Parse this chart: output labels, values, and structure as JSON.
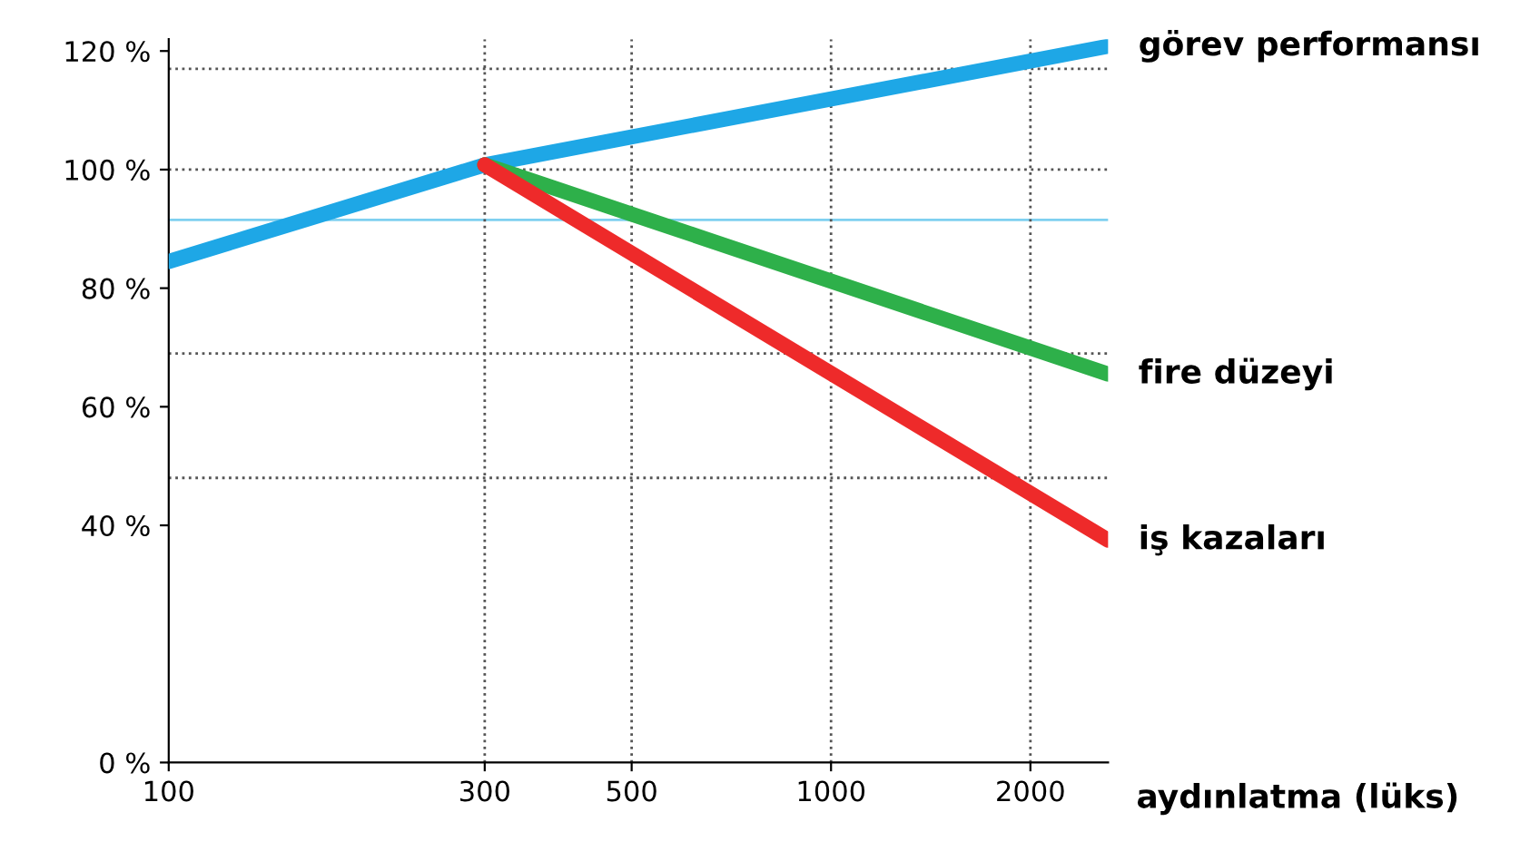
{
  "chart_data": {
    "type": "line",
    "xlabel": "aydınlatma (lüks)",
    "log": "x",
    "xlim": [
      100,
      2620
    ],
    "xticks": [
      100,
      300,
      500,
      1000,
      2000
    ],
    "ylim": [
      0,
      122
    ],
    "yticks": [
      {
        "value": 0,
        "label": "0 %"
      },
      {
        "value": 40,
        "label": "40 %"
      },
      {
        "value": 60,
        "label": "60 %"
      },
      {
        "value": 80,
        "label": "80 %"
      },
      {
        "value": 100,
        "label": "100 %"
      },
      {
        "value": 120,
        "label": "120 %"
      }
    ],
    "grid": false,
    "legend": false,
    "marker": "none",
    "line_style": "solid",
    "series": [
      {
        "name": "görev performansı",
        "color": "#1ea7e6",
        "x": [
          100,
          300,
          2620
        ],
        "values": [
          84.5,
          100.8,
          120.8
        ]
      },
      {
        "name": "fire düzeyi",
        "color": "#2eb04a",
        "x": [
          300,
          2620
        ],
        "values": [
          100.8,
          65.5
        ]
      },
      {
        "name": "iş kazaları",
        "color": "#ee2a2a",
        "x": [
          300,
          2620
        ],
        "values": [
          100.8,
          37.5
        ]
      }
    ],
    "ref_lines": [
      {
        "axis": "y",
        "value": 117,
        "color": "#555555",
        "line_style": "dotted"
      },
      {
        "axis": "y",
        "value": 100,
        "color": "#555555",
        "line_style": "dotted"
      },
      {
        "axis": "y",
        "value": 91.5,
        "color": "#7fd0f0",
        "line_style": "solid"
      },
      {
        "axis": "y",
        "value": 69,
        "color": "#555555",
        "line_style": "dotted"
      },
      {
        "axis": "y",
        "value": 48,
        "color": "#555555",
        "line_style": "dotted"
      },
      {
        "axis": "x",
        "value": 300,
        "color": "#555555",
        "line_style": "dotted"
      },
      {
        "axis": "x",
        "value": 500,
        "color": "#555555",
        "line_style": "dotted"
      },
      {
        "axis": "x",
        "value": 1000,
        "color": "#555555",
        "line_style": "dotted"
      },
      {
        "axis": "x",
        "value": 2000,
        "color": "#555555",
        "line_style": "dotted"
      }
    ]
  }
}
